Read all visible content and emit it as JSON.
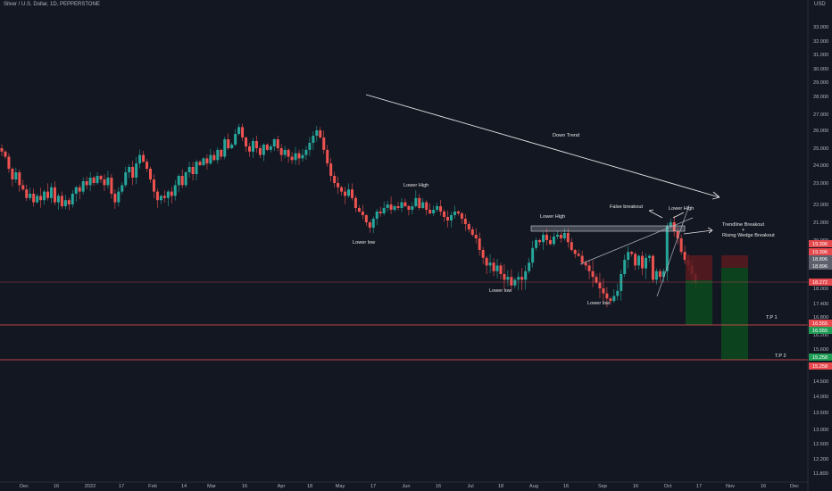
{
  "header": {
    "symbol_title": "Silver / U.S. Dollar, 1D, PEPPERSTONE",
    "currency": "USD"
  },
  "colors": {
    "background": "#131722",
    "up": "#26a69a",
    "down": "#ef5350",
    "axis_text": "#b2b5be",
    "annotation": "#e6e6e6",
    "hline": "#ef5350",
    "stop_zone": "#5b1a20",
    "target_zone": "#0d4a1f",
    "badge_red": "#e5484d",
    "badge_green": "#1f9d55",
    "badge_gray": "#5d606b"
  },
  "chart_data": {
    "type": "candlestick",
    "title": "Silver / U.S. Dollar, 1D, PEPPERSTONE",
    "ylabel": "USD",
    "ylim": [
      11.6,
      33.6
    ],
    "y_ticks": [
      "33.000",
      "32.000",
      "31.000",
      "30.000",
      "29.000",
      "28.000",
      "27.000",
      "26.000",
      "25.000",
      "24.000",
      "23.000",
      "22.000",
      "21.000",
      "20.000",
      "19.000",
      "18.000",
      "17.400",
      "16.800",
      "16.200",
      "15.600",
      "15.000",
      "14.500",
      "14.000",
      "13.500",
      "13.000",
      "12.600",
      "12.200",
      "11.800"
    ],
    "x_ticks": [
      "Dec",
      "16",
      "2022",
      "17",
      "Feb",
      "14",
      "Mar",
      "16",
      "Apr",
      "18",
      "May",
      "17",
      "Jun",
      "16",
      "Jul",
      "18",
      "Aug",
      "16",
      "Sep",
      "16",
      "Oct",
      "17",
      "Nov",
      "16",
      "Dec"
    ],
    "closes": [
      24.8,
      24.5,
      23.8,
      23.2,
      23.6,
      22.9,
      22.7,
      22.3,
      22.5,
      22.1,
      22.4,
      22.2,
      22.6,
      22.3,
      22.8,
      22.1,
      22.4,
      21.9,
      22.2,
      22.0,
      22.5,
      22.8,
      22.6,
      23.1,
      22.9,
      23.3,
      23.0,
      23.4,
      23.2,
      22.9,
      23.3,
      22.5,
      22.1,
      22.6,
      22.9,
      23.6,
      23.9,
      23.3,
      24.1,
      24.6,
      24.2,
      23.8,
      23.2,
      22.6,
      22.2,
      22.4,
      22.3,
      22.6,
      22.4,
      22.9,
      23.4,
      22.9,
      23.6,
      23.9,
      23.5,
      24.2,
      24.0,
      24.4,
      24.1,
      24.6,
      24.3,
      24.9,
      24.5,
      25.5,
      25.0,
      25.2,
      25.8,
      26.2,
      25.6,
      25.1,
      24.8,
      25.4,
      25.0,
      24.6,
      25.2,
      24.9,
      25.1,
      25.5,
      25.0,
      24.6,
      24.9,
      24.5,
      24.3,
      24.7,
      24.4,
      24.6,
      24.9,
      25.3,
      25.7,
      26.0,
      25.6,
      24.9,
      24.1,
      23.4,
      23.0,
      22.8,
      22.6,
      22.4,
      22.7,
      22.3,
      21.8,
      21.6,
      21.4,
      21.0,
      20.7,
      21.2,
      21.6,
      21.5,
      21.8,
      22.0,
      21.7,
      21.9,
      21.8,
      22.1,
      21.9,
      21.7,
      21.9,
      22.3,
      21.8,
      22.1,
      21.7,
      21.5,
      21.7,
      21.9,
      21.6,
      21.3,
      21.1,
      21.4,
      21.6,
      21.5,
      21.2,
      20.9,
      20.6,
      20.3,
      20.1,
      19.5,
      19.1,
      18.8,
      18.9,
      18.6,
      18.8,
      18.5,
      18.3,
      18.4,
      18.1,
      18.3,
      18.4,
      18.3,
      18.6,
      18.9,
      19.6,
      20.0,
      19.9,
      20.3,
      20.0,
      19.8,
      20.2,
      20.3,
      20.1,
      20.4,
      19.9,
      19.5,
      19.3,
      19.2,
      18.9,
      18.8,
      18.6,
      18.4,
      18.2,
      18.0,
      17.8,
      17.6,
      17.5,
      17.7,
      17.9,
      18.5,
      19.0,
      19.4,
      19.3,
      18.8,
      19.2,
      18.7,
      19.1,
      19.2,
      18.3,
      18.6,
      18.4,
      18.6,
      20.8,
      21.0,
      20.5,
      20.1,
      19.4,
      19.0,
      18.8,
      18.5,
      18.2
    ]
  },
  "annotations": {
    "down_trend": "Down Trend",
    "lower_high_jun": "Lower High",
    "lower_low_may": "Lower low",
    "lower_high_aug": "Lower High",
    "lower_low_jul": "Lower low",
    "false_breakout": "False breakout",
    "lower_high_oct": "Lower High",
    "lower_low_sep": "Lower low",
    "trendline_breakout": "Trendline Breakout",
    "plus": "+",
    "rising_wedge_breakout": "Rising Wedge Breakout",
    "tp1": "T.P 1",
    "tp2": "T.P 2"
  },
  "price_badges": [
    {
      "label": "19.396",
      "color": "#e5484d"
    },
    {
      "label": "19.396",
      "color": "#e5484d"
    },
    {
      "label": "18.896",
      "color": "#5d606b"
    },
    {
      "label": "18.896",
      "color": "#5d606b"
    },
    {
      "label": "18.272",
      "color": "#e5484d"
    },
    {
      "label": "16.555",
      "color": "#e5484d"
    },
    {
      "label": "16.555",
      "color": "#1f9d55"
    },
    {
      "label": "15.258",
      "color": "#1f9d55"
    },
    {
      "label": "15.258",
      "color": "#e5484d"
    }
  ]
}
